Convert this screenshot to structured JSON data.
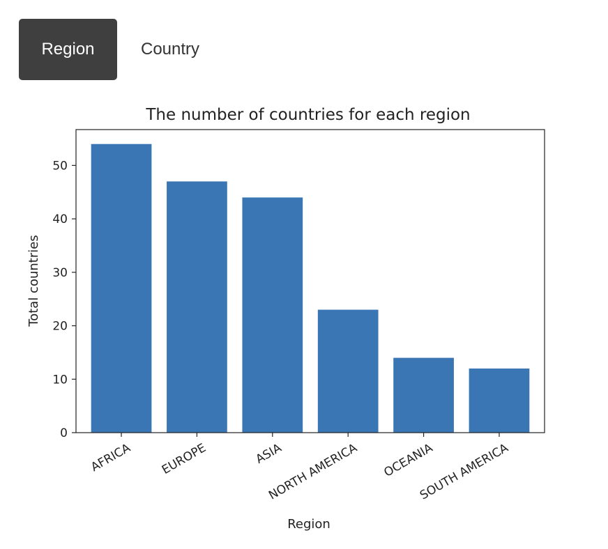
{
  "tabs": [
    {
      "label": "Region",
      "active": true
    },
    {
      "label": "Country",
      "active": false
    }
  ],
  "colors": {
    "bar": "#3a76b3",
    "tab_active_bg": "#3f3f3f"
  },
  "chart_data": {
    "type": "bar",
    "title": "The number of countries for each region",
    "xlabel": "Region",
    "ylabel": "Total countries",
    "categories": [
      "AFRICA",
      "EUROPE",
      "ASIA",
      "NORTH AMERICA",
      "OCEANIA",
      "SOUTH AMERICA"
    ],
    "values": [
      54,
      47,
      44,
      23,
      14,
      12
    ],
    "ylim": [
      0,
      56.7
    ],
    "yticks": [
      0,
      10,
      20,
      30,
      40,
      50
    ],
    "grid": false,
    "legend": "none",
    "xtick_rotation": -30
  }
}
